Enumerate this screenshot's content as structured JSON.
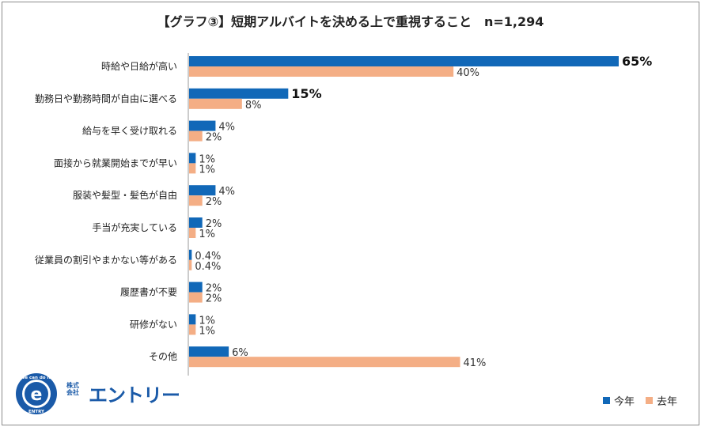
{
  "colors": {
    "this_year": "#1168b8",
    "last_year": "#f4ae85",
    "axis": "#999999"
  },
  "legend": {
    "this_year": "今年",
    "last_year": "去年"
  },
  "logo": {
    "ring_text_top": "We can do it!",
    "ring_text_bottom": "ENTRY",
    "letter": "e",
    "company_prefix_1": "株式",
    "company_prefix_2": "会社",
    "company_name": "エントリー"
  },
  "chart_data": {
    "type": "bar",
    "orientation": "horizontal",
    "title": "【グラフ③】短期アルバイトを決める上で重視すること　n=1,294",
    "categories": [
      "時給や日給が高い",
      "勤務日や勤務時間が自由に選べる",
      "給与を早く受け取れる",
      "面接から就業開始までが早い",
      "服装や髪型・髪色が自由",
      "手当が充実している",
      "従業員の割引やまかない等がある",
      "履歴書が不要",
      "研修がない",
      "その他"
    ],
    "series": [
      {
        "name": "今年",
        "values": [
          65,
          15,
          4,
          1,
          4,
          2,
          0.4,
          2,
          1,
          6
        ],
        "labels": [
          "65%",
          "15%",
          "4%",
          "1%",
          "4%",
          "2%",
          "0.4%",
          "2%",
          "1%",
          "6%"
        ]
      },
      {
        "name": "去年",
        "values": [
          40,
          8,
          2,
          1,
          2,
          1,
          0.4,
          2,
          1,
          41
        ],
        "labels": [
          "40%",
          "8%",
          "2%",
          "1%",
          "2%",
          "1%",
          "0.4%",
          "2%",
          "1%",
          "41%"
        ]
      }
    ],
    "emphasized_labels": [
      "65%",
      "15%"
    ],
    "xlim": [
      0,
      65
    ],
    "legend_position": "bottom-right",
    "grid": false
  }
}
